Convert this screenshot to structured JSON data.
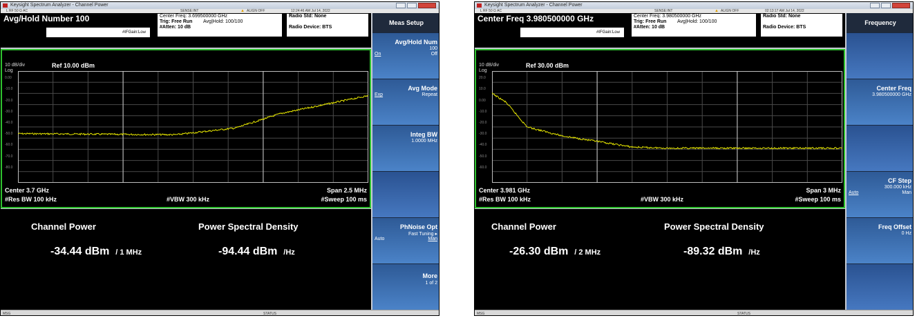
{
  "panels": [
    {
      "title_bar": "Keysight Spectrum Analyzer - Channel Power",
      "status_strip": {
        "ports": "L    RF    50 Ω   AC",
        "sense": "SENSE:INT",
        "align": "ALIGN OFF",
        "datetime": "12:24:46 AM Jul 14, 2022"
      },
      "info_title": "Avg/Hold Number 100",
      "ifgain": "#IFGain:Low",
      "center_freq": "Center Freq: 3.699500000 GHz",
      "trig": "Trig: Free Run",
      "avg_hold": "Avg|Hold: 100/100",
      "atten": "#Atten: 10 dB",
      "radio_std": "Radio Std: None",
      "radio_device": "Radio Device: BTS",
      "scale": "10 dB/div",
      "ref": "Ref 10.00 dBm",
      "log": "Log",
      "y_labels": [
        "0.00",
        "-10.0",
        "-20.0",
        "-30.0",
        "-40.0",
        "-50.0",
        "-60.0",
        "-70.0",
        "-80.0"
      ],
      "center": "Center  3.7 GHz",
      "span": "Span 2.5 MHz",
      "res_bw": "#Res BW  100 kHz",
      "vbw": "#VBW  300 kHz",
      "sweep": "#Sweep  100 ms",
      "result_label_1": "Channel Power",
      "result_label_2": "Power Spectral Density",
      "channel_power_value": "-34.44 dBm",
      "channel_power_unit": "/ 1 MHz",
      "psd_value": "-94.44 dBm",
      "psd_unit": "/Hz",
      "msg": "MSG",
      "status": "STATUS",
      "softkey_title": "Meas Setup",
      "softkeys": [
        {
          "main": "Avg/Hold Num",
          "sub": "100",
          "left": "On",
          "right": "Off"
        },
        {
          "main": "Avg Mode",
          "left": "Exp",
          "right": "Repeat"
        },
        {
          "main": "Integ BW",
          "sub": "1.0000 MHz"
        },
        {
          "main": ""
        },
        {
          "main": "PhNoise Opt",
          "sub": "Fast Tuning ▸",
          "left": "Auto",
          "right": "Man"
        },
        {
          "main": "More",
          "sub": "1 of 2"
        }
      ],
      "trace_color": "#e6e600"
    },
    {
      "title_bar": "Keysight Spectrum Analyzer - Channel Power",
      "status_strip": {
        "ports": "L    RF    50 Ω   AC",
        "sense": "SENSE:INT",
        "align": "ALIGN OFF",
        "datetime": "02:13:17 AM Jul 14, 2022"
      },
      "info_title": "Center Freq 3.980500000 GHz",
      "ifgain": "#IFGain:Low",
      "center_freq": "Center Freq: 3.980500000 GHz",
      "trig": "Trig: Free Run",
      "avg_hold": "Avg|Hold: 100/100",
      "atten": "#Atten: 10 dB",
      "radio_std": "Radio Std: None",
      "radio_device": "Radio Device: BTS",
      "scale": "10 dB/div",
      "ref": "Ref 30.00 dBm",
      "log": "Log",
      "y_labels": [
        "20.0",
        "10.0",
        "0.00",
        "-10.0",
        "-20.0",
        "-30.0",
        "-40.0",
        "-50.0",
        "-60.0"
      ],
      "center": "Center  3.981 GHz",
      "span": "Span 3 MHz",
      "res_bw": "#Res BW  100 kHz",
      "vbw": "#VBW  300 kHz",
      "sweep": "#Sweep  100 ms",
      "result_label_1": "Channel Power",
      "result_label_2": "Power Spectral Density",
      "channel_power_value": "-26.30 dBm",
      "channel_power_unit": "/ 2 MHz",
      "psd_value": "-89.32 dBm",
      "psd_unit": "/Hz",
      "msg": "MSG",
      "status": "STATUS",
      "softkey_title": "Frequency",
      "softkeys": [
        {
          "main": ""
        },
        {
          "main": "Center Freq",
          "sub": "3.980500000 GHz"
        },
        {
          "main": ""
        },
        {
          "main": "CF Step",
          "sub": "300.000 kHz",
          "left": "Auto",
          "right": "Man"
        },
        {
          "main": "Freq Offset",
          "sub": "0 Hz"
        },
        {
          "main": ""
        }
      ],
      "trace_color": "#e6e600"
    }
  ],
  "colors": {
    "frame_green": "#2ec22e",
    "softkey_blue": "#3c6fb4"
  }
}
